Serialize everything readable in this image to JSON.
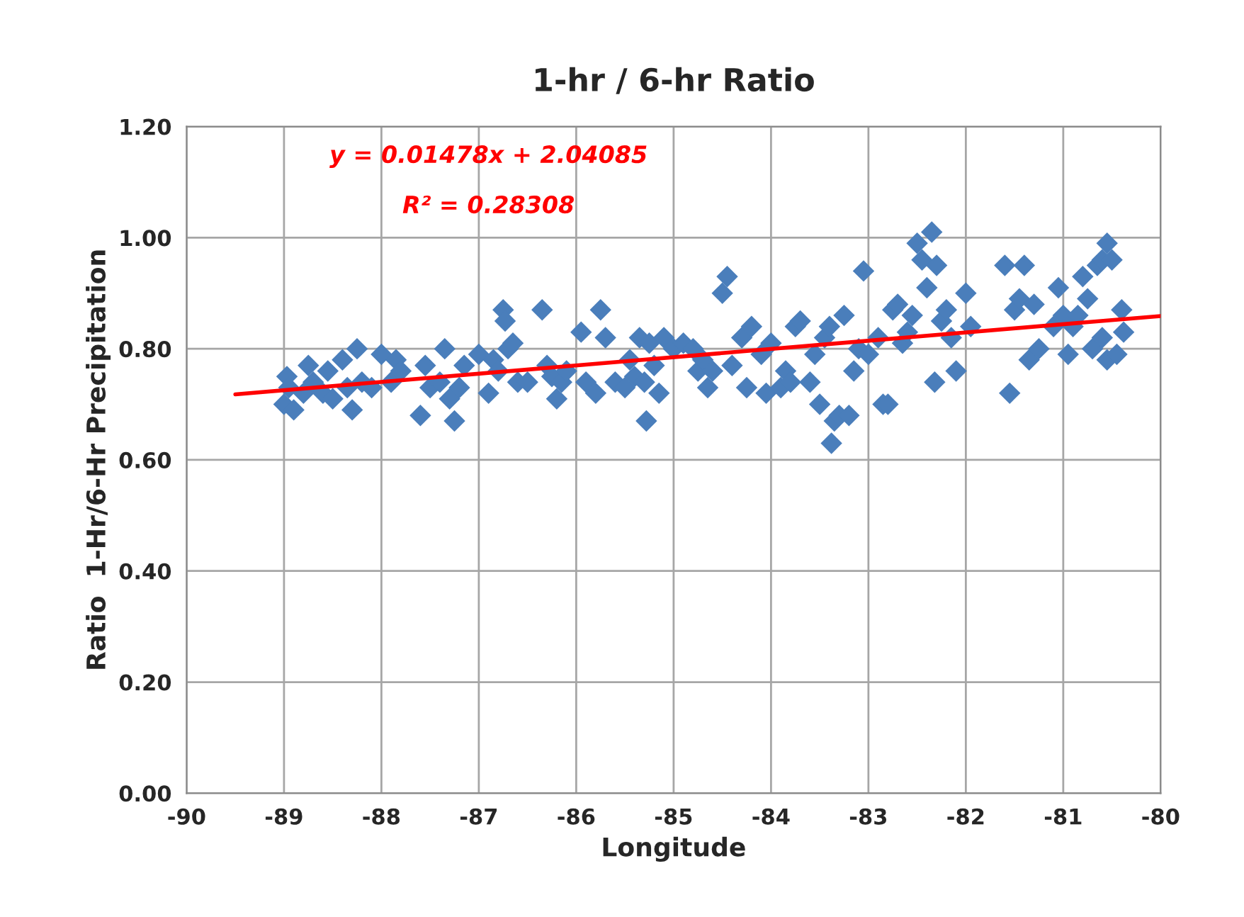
{
  "chart_data": {
    "type": "scatter",
    "title": "1-hr / 6-hr Ratio",
    "xlabel": "Longitude",
    "ylabel": "Ratio  1-Hr/6-Hr Precipitation",
    "xlim": [
      -90,
      -80
    ],
    "xticks": [
      -90,
      -89,
      -88,
      -87,
      -86,
      -85,
      -84,
      -83,
      -82,
      -81,
      -80
    ],
    "ylim": [
      0,
      1.2
    ],
    "yticks": [
      {
        "value": 0,
        "label": "0.00"
      },
      {
        "value": 0.2,
        "label": "0.20"
      },
      {
        "value": 0.4,
        "label": "0.40"
      },
      {
        "value": 0.6,
        "label": "0.60"
      },
      {
        "value": 0.8,
        "label": "0.80"
      },
      {
        "value": 1.0,
        "label": "1.00"
      },
      {
        "value": 1.2,
        "label": "1.20"
      }
    ],
    "grid": true,
    "annotations": [
      "y = 0.01478x + 2.04085",
      "R² = 0.28308"
    ],
    "series": [
      {
        "marker": "diamond",
        "color": "#4a7ebb",
        "x": [
          -89.0,
          -88.97,
          -88.9,
          -88.95,
          -88.8,
          -88.75,
          -88.7,
          -88.6,
          -88.55,
          -88.5,
          -88.4,
          -88.35,
          -88.3,
          -88.25,
          -88.2,
          -88.1,
          -88.0,
          -87.9,
          -87.85,
          -87.8,
          -87.6,
          -87.55,
          -87.5,
          -87.4,
          -87.35,
          -87.3,
          -87.25,
          -87.2,
          -87.15,
          -87.0,
          -86.9,
          -86.85,
          -86.8,
          -86.75,
          -86.73,
          -86.7,
          -86.65,
          -86.6,
          -86.5,
          -86.35,
          -86.3,
          -86.25,
          -86.2,
          -86.15,
          -86.1,
          -85.95,
          -85.9,
          -85.8,
          -85.75,
          -85.7,
          -85.6,
          -85.5,
          -85.45,
          -85.4,
          -85.35,
          -85.3,
          -85.28,
          -85.25,
          -85.2,
          -85.15,
          -85.1,
          -85.0,
          -84.9,
          -84.8,
          -84.75,
          -84.7,
          -84.65,
          -84.6,
          -84.5,
          -84.45,
          -84.4,
          -84.3,
          -84.25,
          -84.2,
          -84.1,
          -84.05,
          -84.0,
          -83.9,
          -83.85,
          -83.8,
          -83.75,
          -83.7,
          -83.6,
          -83.55,
          -83.5,
          -83.45,
          -83.4,
          -83.38,
          -83.35,
          -83.3,
          -83.25,
          -83.2,
          -83.15,
          -83.1,
          -83.05,
          -83.0,
          -82.9,
          -82.85,
          -82.8,
          -82.75,
          -82.7,
          -82.65,
          -82.6,
          -82.55,
          -82.5,
          -82.45,
          -82.4,
          -82.35,
          -82.3,
          -82.32,
          -82.25,
          -82.2,
          -82.15,
          -82.1,
          -82.0,
          -81.95,
          -81.6,
          -81.55,
          -81.5,
          -81.45,
          -81.4,
          -81.35,
          -81.3,
          -81.25,
          -81.1,
          -81.05,
          -81.0,
          -80.95,
          -80.9,
          -80.85,
          -80.8,
          -80.7,
          -80.75,
          -80.65,
          -80.6,
          -80.55,
          -80.5,
          -80.55,
          -80.45,
          -80.4,
          -80.38,
          -80.6
        ],
        "values": [
          0.7,
          0.75,
          0.69,
          0.73,
          0.72,
          0.77,
          0.74,
          0.72,
          0.76,
          0.71,
          0.78,
          0.73,
          0.69,
          0.8,
          0.74,
          0.73,
          0.79,
          0.74,
          0.78,
          0.76,
          0.68,
          0.77,
          0.73,
          0.74,
          0.8,
          0.71,
          0.67,
          0.73,
          0.77,
          0.79,
          0.72,
          0.78,
          0.76,
          0.87,
          0.85,
          0.8,
          0.81,
          0.74,
          0.74,
          0.87,
          0.77,
          0.75,
          0.71,
          0.74,
          0.76,
          0.83,
          0.74,
          0.72,
          0.87,
          0.82,
          0.74,
          0.73,
          0.78,
          0.75,
          0.82,
          0.74,
          0.67,
          0.81,
          0.77,
          0.72,
          0.82,
          0.8,
          0.81,
          0.8,
          0.76,
          0.78,
          0.73,
          0.76,
          0.9,
          0.93,
          0.77,
          0.82,
          0.73,
          0.84,
          0.79,
          0.72,
          0.81,
          0.73,
          0.76,
          0.74,
          0.84,
          0.85,
          0.74,
          0.79,
          0.7,
          0.82,
          0.84,
          0.63,
          0.67,
          0.68,
          0.86,
          0.68,
          0.76,
          0.8,
          0.94,
          0.79,
          0.82,
          0.7,
          0.7,
          0.87,
          0.88,
          0.81,
          0.83,
          0.86,
          0.99,
          0.96,
          0.91,
          1.01,
          0.95,
          0.74,
          0.85,
          0.87,
          0.82,
          0.76,
          0.9,
          0.84,
          0.95,
          0.72,
          0.87,
          0.89,
          0.95,
          0.78,
          0.88,
          0.8,
          0.84,
          0.91,
          0.86,
          0.79,
          0.84,
          0.86,
          0.93,
          0.8,
          0.89,
          0.95,
          0.96,
          0.99,
          0.96,
          0.78,
          0.79,
          0.87,
          0.83,
          0.82
        ]
      },
      {
        "type": "line",
        "color": "#ff0000",
        "x": [
          -89.5,
          -80
        ],
        "values": [
          0.718,
          0.859
        ]
      }
    ]
  }
}
